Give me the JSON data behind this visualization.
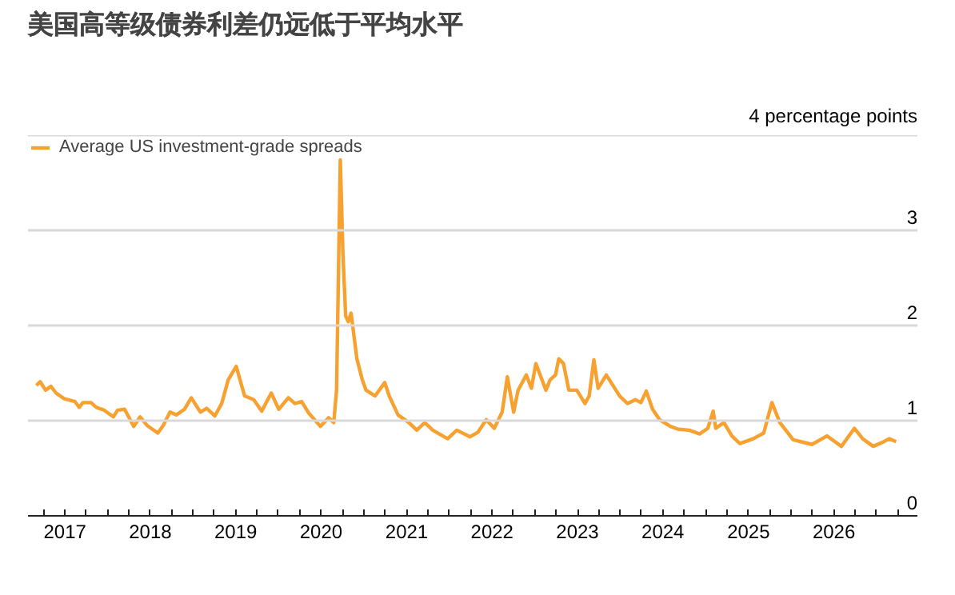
{
  "chart_data": {
    "type": "line",
    "title": "美国高等级债券利差仍远低于平均水平",
    "ylabel": "4 percentage points",
    "x": [
      "2016-09-01",
      "2016-09-17",
      "2016-10-10",
      "2016-11-02",
      "2016-11-24",
      "2016-12-29",
      "2017-02-13",
      "2017-03-03",
      "2017-03-19",
      "2017-04-22",
      "2017-05-15",
      "2017-06-18",
      "2017-07-27",
      "2017-08-14",
      "2017-09-13",
      "2017-10-22",
      "2017-11-18",
      "2017-12-18",
      "2018-02-02",
      "2018-02-25",
      "2018-03-26",
      "2018-04-22",
      "2018-05-27",
      "2018-06-25",
      "2018-08-03",
      "2018-08-30",
      "2018-10-04",
      "2018-11-02",
      "2018-11-30",
      "2019-01-03",
      "2019-02-08",
      "2019-03-19",
      "2019-04-22",
      "2019-06-02",
      "2019-07-04",
      "2019-08-14",
      "2019-09-11",
      "2019-10-10",
      "2019-11-09",
      "2019-12-29",
      "2020-02-02",
      "2020-02-24",
      "2020-03-07",
      "2020-03-23",
      "2020-04-03",
      "2020-04-15",
      "2020-04-26",
      "2020-05-08",
      "2020-06-02",
      "2020-06-25",
      "2020-07-11",
      "2020-08-19",
      "2020-09-29",
      "2020-10-18",
      "2020-11-25",
      "2021-01-10",
      "2021-02-13",
      "2021-03-19",
      "2021-04-22",
      "2021-06-25",
      "2021-08-03",
      "2021-09-29",
      "2021-11-02",
      "2021-12-07",
      "2022-01-10",
      "2022-02-13",
      "2022-03-07",
      "2022-04-03",
      "2022-04-22",
      "2022-05-27",
      "2022-06-18",
      "2022-07-07",
      "2022-08-19",
      "2022-09-06",
      "2022-09-29",
      "2022-10-13",
      "2022-11-02",
      "2022-11-25",
      "2022-12-29",
      "2023-02-02",
      "2023-02-20",
      "2023-03-12",
      "2023-03-30",
      "2023-05-04",
      "2023-06-30",
      "2023-08-03",
      "2023-09-06",
      "2023-09-29",
      "2023-10-22",
      "2023-11-18",
      "2023-12-18",
      "2024-02-02",
      "2024-03-07",
      "2024-04-22",
      "2024-06-06",
      "2024-07-11",
      "2024-08-03",
      "2024-08-14",
      "2024-09-18",
      "2024-10-22",
      "2024-11-25",
      "2025-01-21",
      "2025-03-07",
      "2025-04-11",
      "2025-05-15",
      "2025-07-11",
      "2025-09-29",
      "2025-12-02",
      "2026-02-02",
      "2026-03-30",
      "2026-05-04",
      "2026-06-18",
      "2026-08-03",
      "2026-08-25",
      "2026-09-24"
    ],
    "series": [
      {
        "name": "Average US investment-grade spreads",
        "color": "#f7a130",
        "values": [
          1.37,
          1.41,
          1.32,
          1.36,
          1.29,
          1.23,
          1.2,
          1.14,
          1.19,
          1.19,
          1.14,
          1.11,
          1.04,
          1.11,
          1.12,
          0.94,
          1.04,
          0.95,
          0.87,
          0.95,
          1.09,
          1.06,
          1.12,
          1.24,
          1.09,
          1.13,
          1.05,
          1.18,
          1.43,
          1.57,
          1.26,
          1.22,
          1.1,
          1.29,
          1.12,
          1.24,
          1.18,
          1.2,
          1.08,
          0.94,
          1.03,
          0.98,
          1.32,
          3.74,
          2.77,
          2.1,
          2.04,
          2.13,
          1.65,
          1.43,
          1.32,
          1.26,
          1.4,
          1.26,
          1.06,
          0.98,
          0.9,
          0.98,
          0.9,
          0.81,
          0.9,
          0.83,
          0.88,
          1.01,
          0.92,
          1.09,
          1.46,
          1.09,
          1.32,
          1.48,
          1.34,
          1.6,
          1.32,
          1.43,
          1.48,
          1.65,
          1.6,
          1.32,
          1.32,
          1.18,
          1.26,
          1.64,
          1.34,
          1.48,
          1.26,
          1.18,
          1.22,
          1.19,
          1.31,
          1.12,
          1.01,
          0.94,
          0.91,
          0.9,
          0.86,
          0.92,
          1.1,
          0.92,
          0.98,
          0.84,
          0.76,
          0.81,
          0.87,
          1.19,
          0.98,
          0.8,
          0.75,
          0.84,
          0.73,
          0.92,
          0.81,
          0.73,
          0.78,
          0.81,
          0.78
        ]
      }
    ],
    "xlim": [
      "2016-07-27",
      "2026-12-24"
    ],
    "xticks": [
      {
        "value": "2016-10-01",
        "label": null
      },
      {
        "value": "2017-01-01",
        "label": "2017"
      },
      {
        "value": "2017-04-01",
        "label": null
      },
      {
        "value": "2017-07-01",
        "label": null
      },
      {
        "value": "2017-10-01",
        "label": null
      },
      {
        "value": "2018-01-01",
        "label": "2018"
      },
      {
        "value": "2018-04-01",
        "label": null
      },
      {
        "value": "2018-07-01",
        "label": null
      },
      {
        "value": "2018-10-01",
        "label": null
      },
      {
        "value": "2019-01-01",
        "label": "2019"
      },
      {
        "value": "2019-04-01",
        "label": null
      },
      {
        "value": "2019-07-01",
        "label": null
      },
      {
        "value": "2019-10-01",
        "label": null
      },
      {
        "value": "2020-01-01",
        "label": "2020"
      },
      {
        "value": "2020-04-01",
        "label": null
      },
      {
        "value": "2020-07-01",
        "label": null
      },
      {
        "value": "2020-10-01",
        "label": null
      },
      {
        "value": "2021-01-01",
        "label": "2021"
      },
      {
        "value": "2021-04-01",
        "label": null
      },
      {
        "value": "2021-07-01",
        "label": null
      },
      {
        "value": "2021-10-01",
        "label": null
      },
      {
        "value": "2022-01-01",
        "label": "2022"
      },
      {
        "value": "2022-04-01",
        "label": null
      },
      {
        "value": "2022-07-01",
        "label": null
      },
      {
        "value": "2022-10-01",
        "label": null
      },
      {
        "value": "2023-01-01",
        "label": "2023"
      },
      {
        "value": "2023-04-01",
        "label": null
      },
      {
        "value": "2023-07-01",
        "label": null
      },
      {
        "value": "2023-10-01",
        "label": null
      },
      {
        "value": "2024-01-01",
        "label": "2024"
      },
      {
        "value": "2024-04-01",
        "label": null
      },
      {
        "value": "2024-07-01",
        "label": null
      },
      {
        "value": "2024-10-01",
        "label": null
      },
      {
        "value": "2025-01-01",
        "label": "2025"
      },
      {
        "value": "2025-04-01",
        "label": null
      },
      {
        "value": "2025-07-01",
        "label": null
      },
      {
        "value": "2025-10-01",
        "label": null
      },
      {
        "value": "2026-01-01",
        "label": "2026"
      },
      {
        "value": "2026-04-01",
        "label": null
      },
      {
        "value": "2026-07-01",
        "label": null
      },
      {
        "value": "2026-10-01",
        "label": null
      }
    ],
    "ylim": [
      0,
      4
    ],
    "yticks": [
      0,
      1,
      2,
      3,
      {
        "value": 4,
        "label": null
      }
    ],
    "grid": "y",
    "legend": "top left",
    "marker": "none",
    "line_style": "solid"
  }
}
